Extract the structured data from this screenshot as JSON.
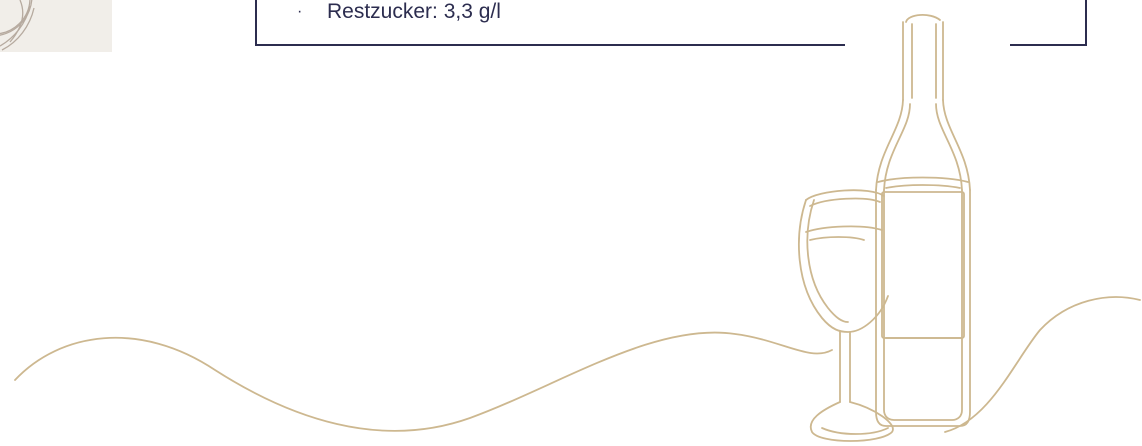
{
  "specs": {
    "items": [
      {
        "bullet": "·",
        "text": "Restzucker: 3,3 g/l"
      }
    ]
  },
  "colors": {
    "navy": "#2c2d4f",
    "gold_line": "#cdb890",
    "panel": "#f1eee9"
  },
  "icons": {
    "decor": "wine-bottle-and-glass-line-art"
  }
}
